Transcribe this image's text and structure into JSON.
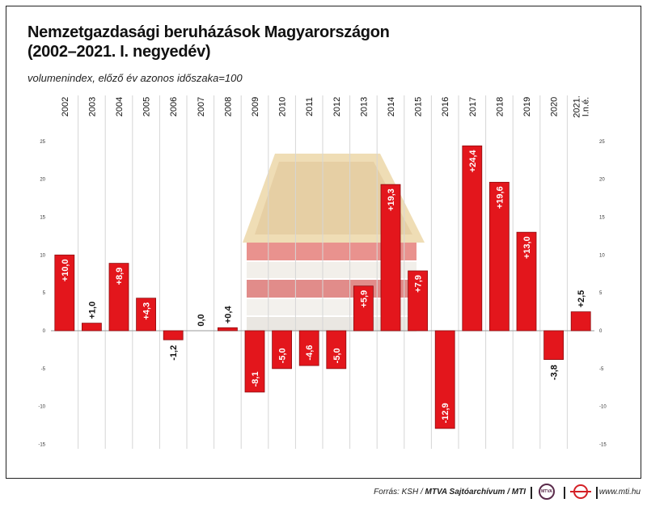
{
  "title_line1": "Nemzetgazdasági beruházások Magyarországon",
  "title_line2": "(2002–2021. I. negyedév)",
  "subtitle": "volumenindex, előző év azonos időszaka=100",
  "footer": {
    "source_prefix": "Forrás: KSH / ",
    "source_bold": "MTVA Sajtóarchívum / MTI",
    "logo_text": "MTVA",
    "website": "www.mti.hu"
  },
  "colors": {
    "bar": "#e3161c",
    "bar_edge": "#8e0d10",
    "grid": "#d6d6d6",
    "zero": "#999999"
  },
  "chart_data": {
    "type": "bar",
    "categories": [
      "2002",
      "2003",
      "2004",
      "2005",
      "2006",
      "2007",
      "2008",
      "2009",
      "2010",
      "2011",
      "2012",
      "2013",
      "2014",
      "2015",
      "2016",
      "2017",
      "2018",
      "2019",
      "2020",
      "2021.\nI.n.é."
    ],
    "values": [
      10.0,
      1.0,
      8.9,
      4.3,
      -1.2,
      0.0,
      0.4,
      -8.1,
      -5.0,
      -4.6,
      -5.0,
      5.9,
      19.3,
      7.9,
      -12.9,
      24.4,
      19.6,
      13.0,
      -3.8,
      2.5
    ],
    "labels": [
      "+10,0",
      "+1,0",
      "+8,9",
      "+4,3",
      "-1,2",
      "0,0",
      "+0,4",
      "-8,1",
      "-5,0",
      "-4,6",
      "-5,0",
      "+5,9",
      "+19,3",
      "+7,9",
      "-12,9",
      "+24,4",
      "+19,6",
      "+13,0",
      "-3,8",
      "+2,5"
    ],
    "ylim": [
      -15,
      25
    ],
    "yticks": [
      "-15",
      "-10",
      "-5",
      "0",
      "5",
      "10",
      "15",
      "20",
      "25"
    ],
    "grid": true,
    "ylabel": "",
    "xlabel": ""
  }
}
